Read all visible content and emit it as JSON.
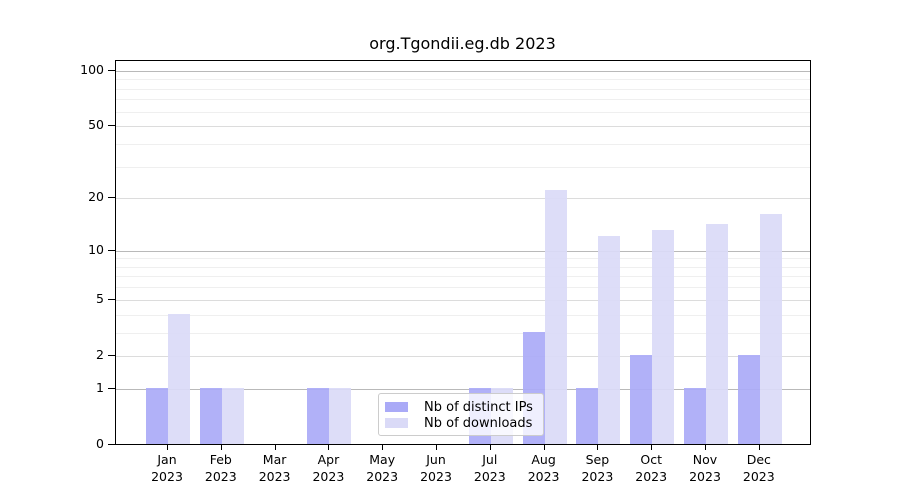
{
  "title": "org.Tgondii.eg.db 2023",
  "legend": {
    "items": [
      {
        "label": "Nb of distinct IPs",
        "color": "#aaaaf7"
      },
      {
        "label": "Nb of downloads",
        "color": "#dadaf7"
      }
    ]
  },
  "y_axis": {
    "tick_labels": [
      "0",
      "1",
      "2",
      "5",
      "10",
      "20",
      "50",
      "100"
    ]
  },
  "x_axis": {
    "year": "2023",
    "months": [
      "Jan",
      "Feb",
      "Mar",
      "Apr",
      "May",
      "Jun",
      "Jul",
      "Aug",
      "Sep",
      "Oct",
      "Nov",
      "Dec"
    ]
  },
  "chart_data": {
    "type": "bar",
    "title": "org.Tgondii.eg.db 2023",
    "categories": [
      "Jan 2023",
      "Feb 2023",
      "Mar 2023",
      "Apr 2023",
      "May 2023",
      "Jun 2023",
      "Jul 2023",
      "Aug 2023",
      "Sep 2023",
      "Oct 2023",
      "Nov 2023",
      "Dec 2023"
    ],
    "series": [
      {
        "name": "Nb of distinct IPs",
        "color": "#aaaaf7",
        "values": [
          1,
          1,
          0,
          1,
          0,
          0,
          1,
          3,
          1,
          2,
          1,
          2
        ]
      },
      {
        "name": "Nb of downloads",
        "color": "#dadaf7",
        "values": [
          4,
          1,
          0,
          1,
          0,
          0,
          1,
          22,
          12,
          13,
          14,
          16
        ]
      }
    ],
    "xlabel": "",
    "ylabel": "",
    "yscale": "log1p",
    "y_ticks": [
      0,
      1,
      2,
      5,
      10,
      20,
      50,
      100
    ],
    "y_minor_gridlines": [
      3,
      4,
      6,
      7,
      8,
      9,
      30,
      40,
      60,
      70,
      80,
      90
    ],
    "ylim": [
      0,
      113
    ],
    "grid": "horizontal",
    "legend_position": "inside bottom-center",
    "bar_layout": "paired per month: distinct IPs left, downloads right"
  }
}
